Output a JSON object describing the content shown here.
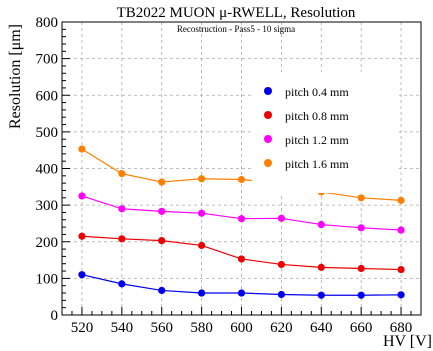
{
  "chart_data": {
    "type": "line",
    "title": "TB2022 MUON  μ-RWELL, Resolution",
    "subtitle": "Recostruction - Pass5 - 10 sigma",
    "xlabel": "HV [V]",
    "ylabel": "Resolution [μm]",
    "xlim": [
      510,
      690
    ],
    "ylim": [
      0,
      800
    ],
    "xticks": [
      520,
      540,
      560,
      580,
      600,
      620,
      640,
      660,
      680
    ],
    "yticks": [
      0,
      100,
      200,
      300,
      400,
      500,
      600,
      700,
      800
    ],
    "grid": true,
    "legend_position": "top-right",
    "x": [
      520,
      540,
      560,
      580,
      600,
      620,
      640,
      660,
      680
    ],
    "series": [
      {
        "name": "pitch 0.4 mm",
        "color": "#0000ee",
        "values": [
          110,
          85,
          67,
          60,
          60,
          56,
          54,
          54,
          55
        ]
      },
      {
        "name": "pitch 0.8 mm",
        "color": "#ee0000",
        "values": [
          215,
          208,
          203,
          190,
          153,
          138,
          130,
          127,
          124
        ]
      },
      {
        "name": "pitch 1.2 mm",
        "color": "#ff00ff",
        "values": [
          325,
          290,
          283,
          278,
          263,
          264,
          247,
          238,
          232
        ]
      },
      {
        "name": "pitch 1.6 mm",
        "color": "#ff8000",
        "values": [
          453,
          386,
          363,
          372,
          370,
          360,
          336,
          320,
          313
        ]
      }
    ]
  }
}
